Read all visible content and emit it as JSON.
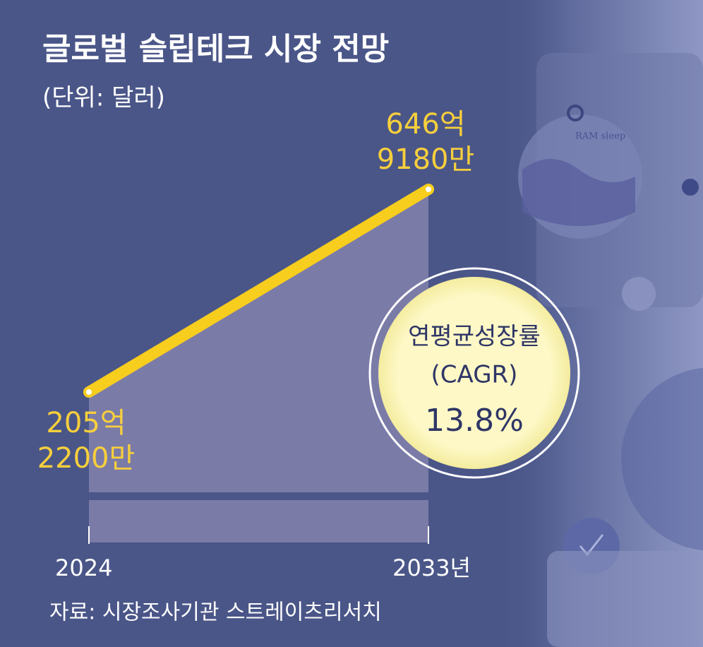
{
  "chart_data": {
    "type": "line",
    "title": "글로벌 슬립테크 시장 전망",
    "subtitle": "(단위: 달러)",
    "categories": [
      "2024",
      "2033년"
    ],
    "series": [
      {
        "name": "글로벌 슬립테크 시장",
        "color": "#f7cd1e",
        "values": [
          20522000000,
          64691800000
        ],
        "value_labels": [
          [
            "205억",
            "2200만"
          ],
          [
            "646억",
            "9180만"
          ]
        ]
      }
    ],
    "area_color": "#7b7ba8",
    "annotation": {
      "label": "연평균성장률",
      "sublabel": "(CAGR)",
      "value_label": "13.8%"
    },
    "source": "자료: 시장조사기관 스트레이츠리서치",
    "background_text": "RAM  sleep"
  }
}
